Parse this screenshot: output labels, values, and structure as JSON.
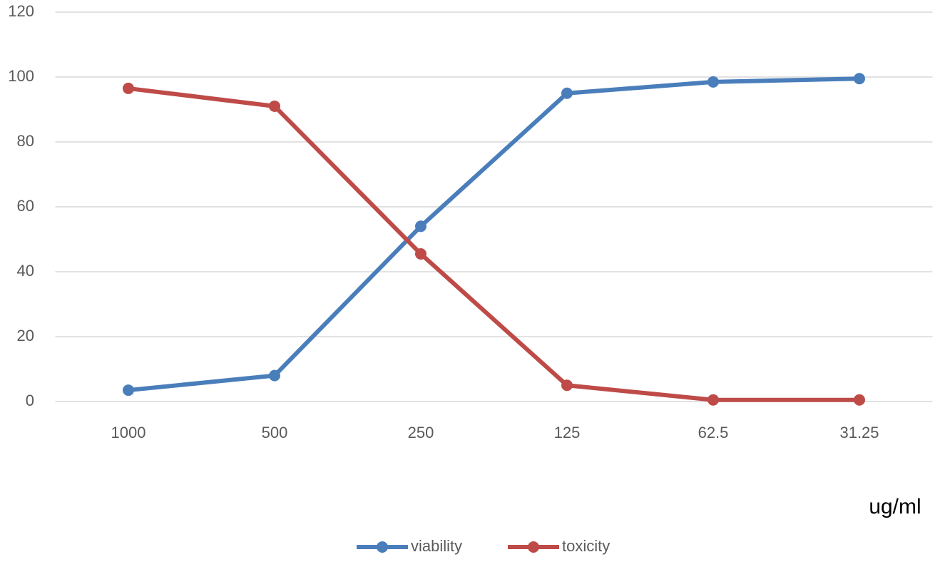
{
  "chart_data": {
    "type": "line",
    "x_label": "ug/ml",
    "categories": [
      "1000",
      "500",
      "250",
      "125",
      "62.5",
      "31.25"
    ],
    "series": [
      {
        "name": "viability",
        "color": "#4a7ebb",
        "values": [
          3.5,
          8,
          54,
          95,
          98.5,
          99.5
        ]
      },
      {
        "name": "toxicity",
        "color": "#be4b48",
        "values": [
          96.5,
          91,
          45.5,
          5,
          0.5,
          0.5
        ]
      }
    ],
    "ylim": [
      0,
      120
    ],
    "yticks": [
      0,
      20,
      40,
      60,
      80,
      100,
      120
    ],
    "grid": true,
    "legend": "bottom"
  }
}
